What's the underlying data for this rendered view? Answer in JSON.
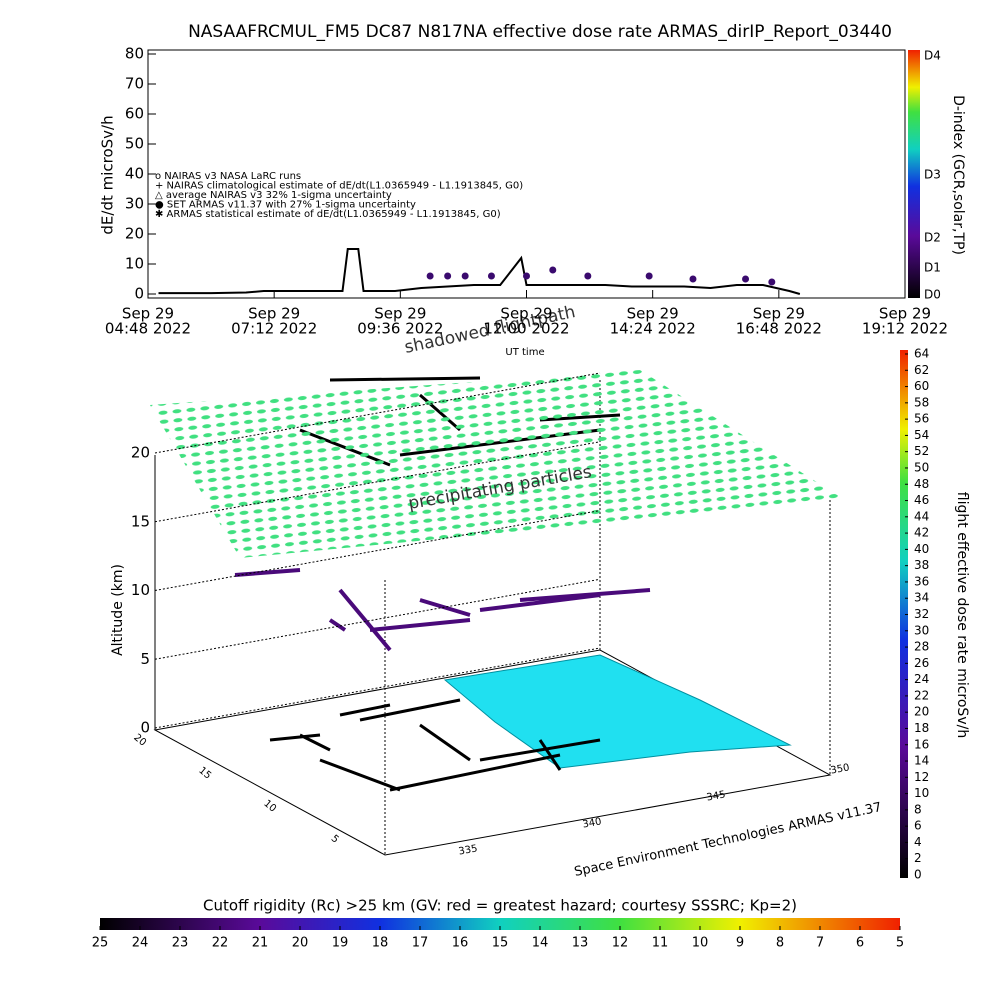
{
  "chart_data": {
    "type": "line",
    "title": "NASAAFRCMUL_FM5 DC87 N817NA effective dose rate ARMAS_dirIP_Report_03440",
    "y_label": "dE/dt microSv/h",
    "x_label": "UT time",
    "xlim": [
      "2022-09-29 04:48",
      "2022-09-29 19:12"
    ],
    "xticks": [
      {
        "value": "2022-09-29 04:48",
        "label": [
          "Sep 29",
          "04:48 2022"
        ]
      },
      {
        "value": "2022-09-29 07:12",
        "label": [
          "Sep 29",
          "07:12 2022"
        ]
      },
      {
        "value": "2022-09-29 09:36",
        "label": [
          "Sep 29",
          "09:36 2022"
        ]
      },
      {
        "value": "2022-09-29 12:00",
        "label": [
          "Sep 29",
          "12:00 2022"
        ]
      },
      {
        "value": "2022-09-29 14:24",
        "label": [
          "Sep 29",
          "14:24 2022"
        ]
      },
      {
        "value": "2022-09-29 16:48",
        "label": [
          "Sep 29",
          "16:48 2022"
        ]
      },
      {
        "value": "2022-09-29 19:12",
        "label": [
          "Sep 29",
          "19:12 2022"
        ]
      }
    ],
    "ylim": [
      0,
      80
    ],
    "yticks": [
      0,
      10,
      20,
      30,
      40,
      50,
      60,
      70,
      80
    ],
    "legend": [
      "o NAIRAS v3 NASA LaRC runs",
      "+ NAIRAS climatological estimate of dE/dt(L1.0365949 - L1.1913845, G0)",
      "△ average NAIRAS v3 32% 1-sigma uncertainty",
      "● SET ARMAS v11.37 with 27% 1-sigma uncertainty",
      "✱ ARMAS statistical estimate of dE/dt(L1.0365949 - L1.1913845, G0)"
    ],
    "series": [
      {
        "color": "#000000",
        "x": [
          "2022-09-29 05:00",
          "2022-09-29 06:00",
          "2022-09-29 06:40",
          "2022-09-29 07:00",
          "2022-09-29 07:30",
          "2022-09-29 08:00",
          "2022-09-29 08:30",
          "2022-09-29 08:36",
          "2022-09-29 08:48",
          "2022-09-29 08:54",
          "2022-09-29 09:30",
          "2022-09-29 10:00",
          "2022-09-29 10:30",
          "2022-09-29 11:00",
          "2022-09-29 11:30",
          "2022-09-29 11:54",
          "2022-09-29 12:00",
          "2022-09-29 12:30",
          "2022-09-29 13:00",
          "2022-09-29 13:30",
          "2022-09-29 14:00",
          "2022-09-29 14:30",
          "2022-09-29 15:00",
          "2022-09-29 15:30",
          "2022-09-29 16:00",
          "2022-09-29 16:30",
          "2022-09-29 17:00",
          "2022-09-29 17:12"
        ],
        "values": [
          0.3,
          0.3,
          0.5,
          1,
          1,
          1,
          1,
          15,
          15,
          1,
          1,
          2,
          2.5,
          3,
          3,
          12,
          3,
          3,
          3,
          3,
          2.5,
          2.5,
          2.5,
          2,
          3,
          3,
          1,
          0
        ]
      },
      {
        "color": "#3a0a6e",
        "x": [
          "2022-09-29 10:10",
          "2022-09-29 10:30",
          "2022-09-29 10:50",
          "2022-09-29 11:20",
          "2022-09-29 12:00",
          "2022-09-29 12:30",
          "2022-09-29 13:10",
          "2022-09-29 14:20",
          "2022-09-29 15:10",
          "2022-09-29 16:10",
          "2022-09-29 16:40"
        ],
        "values": [
          6,
          6,
          6,
          6,
          6,
          8,
          6,
          6,
          5,
          5,
          4
        ]
      }
    ],
    "dindex_colorbar": {
      "title": "D-index (GCR,solar,TP)",
      "labels": [
        "D0",
        "D1",
        "D2",
        "D3",
        "D4"
      ]
    }
  },
  "scene": {
    "annotations": [
      "shadowed flightpath",
      "precipitating particles"
    ],
    "altitude_label": "Altitude (km)",
    "altitude_lim": [
      0,
      20
    ],
    "altitude_ticks": [
      0,
      5,
      10,
      15,
      20
    ],
    "latitude_ticks": [
      "20",
      "15",
      "10",
      "5"
    ],
    "longitude_ticks": [
      "335",
      "340",
      "345",
      "350"
    ],
    "credit": "Space Environment Technologies ARMAS v11.37"
  },
  "dose_colorbar": {
    "title": "flight effective dose rate microSv/h",
    "lim": [
      0,
      64
    ],
    "ticks": [
      0,
      2,
      4,
      6,
      8,
      10,
      12,
      14,
      16,
      18,
      20,
      22,
      24,
      26,
      28,
      30,
      32,
      34,
      36,
      38,
      40,
      42,
      44,
      46,
      48,
      50,
      52,
      54,
      56,
      58,
      60,
      62,
      64
    ]
  },
  "rigidity_colorbar": {
    "title": "Cutoff rigidity (Rc) >25 km (GV: red = greatest hazard; courtesy SSSRC; Kp=2)",
    "lim": [
      25,
      5
    ],
    "ticks": [
      25,
      24,
      23,
      22,
      21,
      20,
      19,
      18,
      17,
      16,
      15,
      14,
      13,
      12,
      11,
      10,
      9,
      8,
      7,
      6,
      5
    ]
  }
}
